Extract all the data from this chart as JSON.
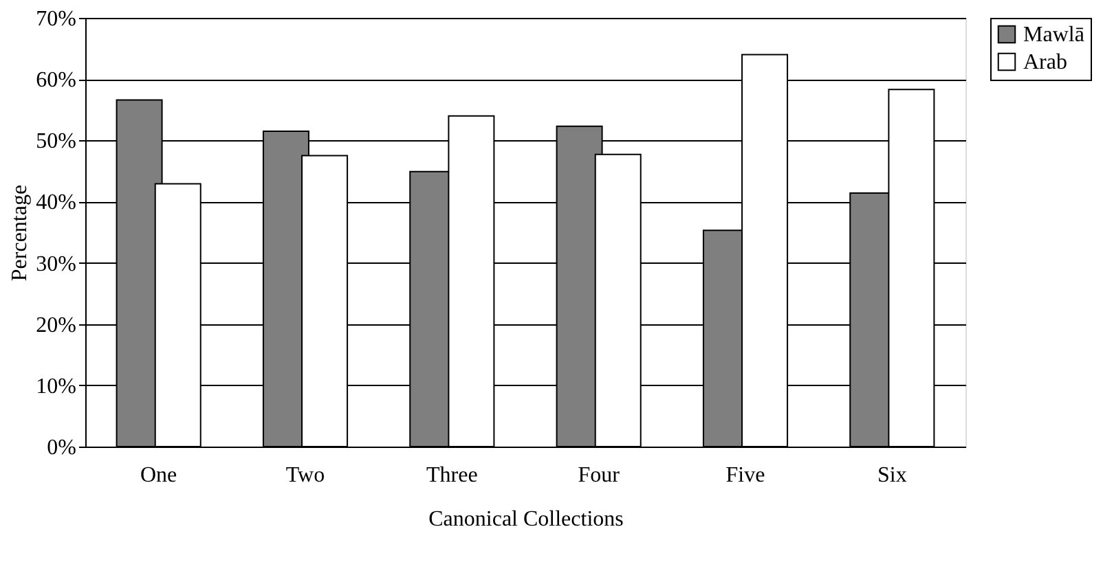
{
  "chart_data": {
    "type": "bar",
    "xlabel": "Canonical Collections",
    "ylabel": "Percentage",
    "categories": [
      "One",
      "Two",
      "Three",
      "Four",
      "Five",
      "Six"
    ],
    "series": [
      {
        "name": "Mawlā",
        "color": "#7f7f7f",
        "values": [
          56.6,
          51.5,
          44.9,
          52.3,
          35.3,
          41.4
        ]
      },
      {
        "name": "Arab",
        "color": "#ffffff",
        "values": [
          42.9,
          47.5,
          54.0,
          47.7,
          64.0,
          58.3
        ]
      }
    ],
    "ylim": [
      0,
      70
    ],
    "yticks": [
      {
        "value": 0,
        "label": "0%"
      },
      {
        "value": 10,
        "label": "10%"
      },
      {
        "value": 20,
        "label": "20%"
      },
      {
        "value": 30,
        "label": "30%"
      },
      {
        "value": 40,
        "label": "40%"
      },
      {
        "value": 50,
        "label": "50%"
      },
      {
        "value": 60,
        "label": "60%"
      },
      {
        "value": 70,
        "label": "70%"
      }
    ],
    "grid": "y",
    "legend": "right"
  }
}
